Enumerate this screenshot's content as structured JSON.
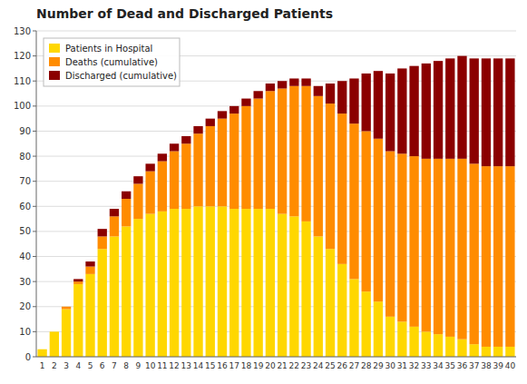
{
  "chart_data": {
    "type": "bar",
    "stacked": true,
    "title": "Number of Dead and Discharged Patients",
    "categories": [
      "1",
      "2",
      "3",
      "4",
      "5",
      "6",
      "7",
      "8",
      "9",
      "10",
      "11",
      "12",
      "13",
      "14",
      "15",
      "16",
      "17",
      "18",
      "19",
      "20",
      "21",
      "22",
      "23",
      "24",
      "25",
      "26",
      "27",
      "28",
      "29",
      "30",
      "31",
      "32",
      "33",
      "34",
      "35",
      "36",
      "37",
      "38",
      "39",
      "40"
    ],
    "series": [
      {
        "name": "Patients in Hospital",
        "color": "#FFD700",
        "values": [
          3,
          10,
          19,
          29,
          33,
          43,
          48,
          52,
          55,
          57,
          58,
          59,
          59,
          60,
          60,
          60,
          59,
          59,
          59,
          59,
          57,
          56,
          54,
          48,
          43,
          37,
          31,
          26,
          22,
          16,
          14,
          12,
          10,
          9,
          8,
          7,
          5,
          4,
          4,
          4
        ]
      },
      {
        "name": "Deaths (cumulative)",
        "color": "#FF8C00",
        "values": [
          0,
          0,
          1,
          1,
          3,
          5,
          8,
          11,
          14,
          17,
          20,
          23,
          26,
          29,
          32,
          35,
          38,
          41,
          44,
          47,
          50,
          52,
          54,
          56,
          58,
          60,
          62,
          64,
          65,
          66,
          67,
          68,
          69,
          70,
          71,
          72,
          72,
          72,
          72,
          72
        ]
      },
      {
        "name": "Discharged (cumulative)",
        "color": "#8B0000",
        "values": [
          0,
          0,
          0,
          1,
          2,
          3,
          3,
          3,
          3,
          3,
          3,
          3,
          3,
          3,
          3,
          3,
          3,
          3,
          3,
          3,
          3,
          3,
          3,
          4,
          8,
          13,
          18,
          23,
          27,
          31,
          34,
          36,
          38,
          39,
          40,
          41,
          42,
          43,
          43,
          43
        ]
      }
    ],
    "ylim": [
      0,
      130
    ],
    "yticks": [
      0,
      10,
      20,
      30,
      40,
      50,
      60,
      70,
      80,
      90,
      100,
      110,
      120,
      130
    ],
    "grid": true,
    "legend": "upper left"
  }
}
